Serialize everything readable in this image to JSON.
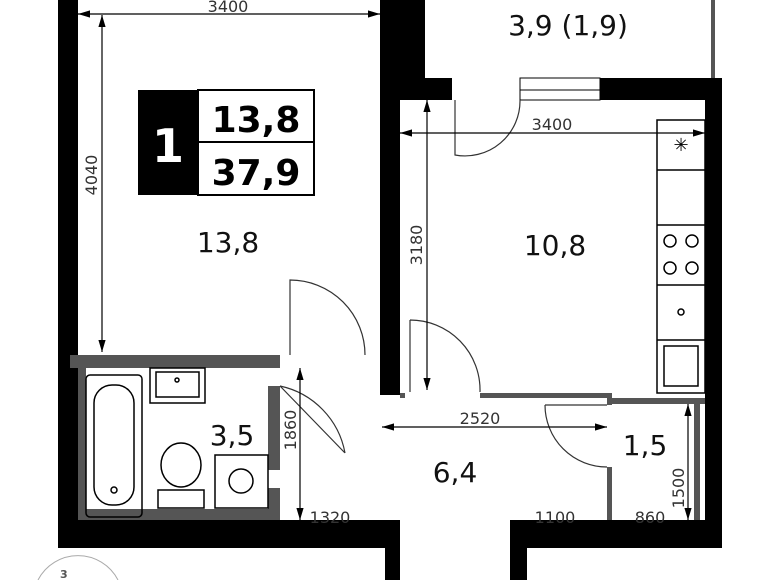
{
  "apartment": {
    "rooms_count": "1",
    "living_area": "13,8",
    "total_area": "37,9"
  },
  "rooms": {
    "living_room": "13,8",
    "balcony": "3,9 (1,9)",
    "kitchen": "10,8",
    "bathroom": "3,5",
    "hallway": "6,4",
    "wc": "1,5"
  },
  "dimensions": {
    "living_width": "3400",
    "living_length": "4040",
    "kitchen_width": "3400",
    "kitchen_length": "3180",
    "hall_width": "2520",
    "hall_length": "1860",
    "bath_door_offset": "1320",
    "entry_offset": "1100",
    "wc_width": "860",
    "wc_length": "1500"
  },
  "floor_indicator": "3",
  "colors": {
    "wall": "#000000",
    "partition": "#555555"
  }
}
